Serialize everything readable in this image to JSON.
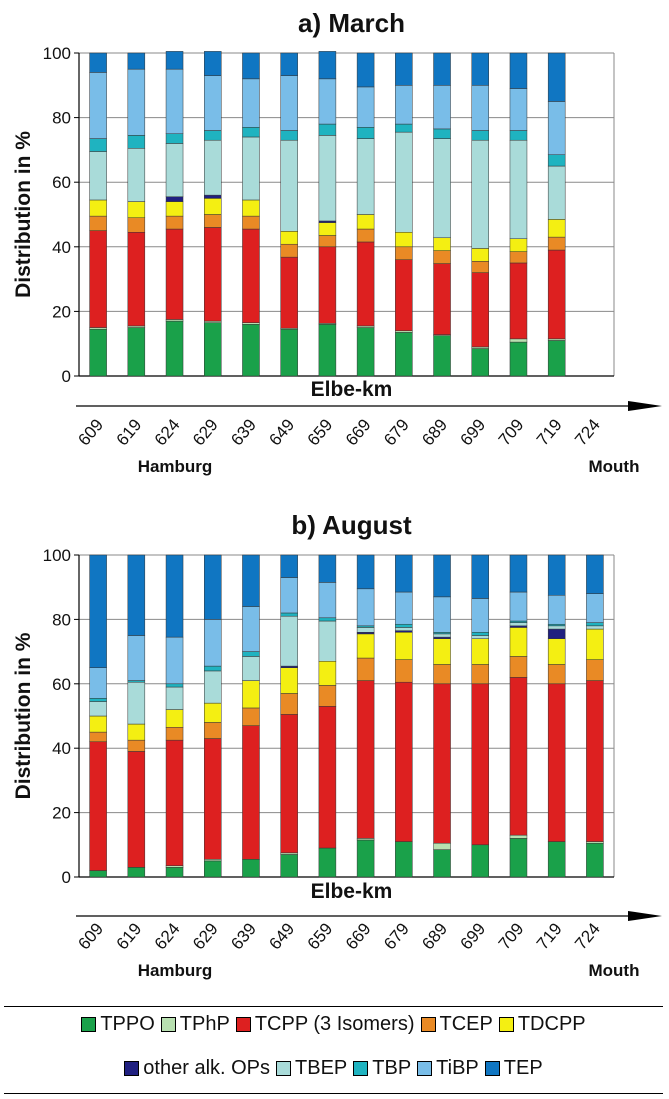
{
  "colors": {
    "TPPO": "#1aa14a",
    "TPhP": "#b8e0b0",
    "TCPP": "#dd2020",
    "TCEP": "#e98a25",
    "TDCPP": "#f4ef12",
    "other": "#202080",
    "TBEP": "#a9dbd9",
    "TBP": "#1fb3c0",
    "TiBP": "#79bde8",
    "TEP": "#1076c2"
  },
  "legend": [
    {
      "key": "TPPO",
      "label": "TPPO"
    },
    {
      "key": "TPhP",
      "label": "TPhP"
    },
    {
      "key": "TCPP",
      "label": "TCPP (3 Isomers)"
    },
    {
      "key": "TCEP",
      "label": "TCEP"
    },
    {
      "key": "TDCPP",
      "label": "TDCPP"
    },
    {
      "key": "other",
      "label": "other alk. OPs"
    },
    {
      "key": "TBEP",
      "label": "TBEP"
    },
    {
      "key": "TBP",
      "label": "TBP"
    },
    {
      "key": "TiBP",
      "label": "TiBP"
    },
    {
      "key": "TEP",
      "label": "TEP"
    }
  ],
  "chart_data": [
    {
      "type": "bar",
      "stacked": true,
      "title": "a) March",
      "ylabel": "Distribution in %",
      "xlabel": "Elbe-km",
      "ylim": [
        0,
        100
      ],
      "yticks": [
        0,
        20,
        40,
        60,
        80,
        100
      ],
      "grid": true,
      "categories": [
        "609",
        "619",
        "624",
        "629",
        "639",
        "649",
        "659",
        "669",
        "679",
        "689",
        "699",
        "709",
        "719",
        "724"
      ],
      "annotations": {
        "left": "Hamburg",
        "right": "Mouth"
      },
      "series": [
        {
          "name": "TPPO",
          "values": [
            14.5,
            15,
            17,
            16.5,
            16,
            14.5,
            16,
            15,
            13.5,
            12.5,
            8.5,
            10.5,
            11,
            0
          ]
        },
        {
          "name": "TPhP",
          "values": [
            0.5,
            0.5,
            0.5,
            0.5,
            0.5,
            0.3,
            0.3,
            0.5,
            0.5,
            0.3,
            0.5,
            1,
            0.5,
            0
          ]
        },
        {
          "name": "TCPP (3 Isomers)",
          "values": [
            30,
            29,
            28,
            29,
            29,
            22,
            23.7,
            26,
            22,
            22,
            23,
            23.5,
            27.5,
            0
          ]
        },
        {
          "name": "TCEP",
          "values": [
            4.5,
            4.5,
            4,
            4,
            4,
            4,
            3.5,
            4,
            4,
            4,
            3.5,
            3.5,
            4,
            0
          ]
        },
        {
          "name": "TDCPP",
          "values": [
            5,
            5,
            4.5,
            5,
            5,
            4,
            4,
            4.5,
            4.5,
            4,
            4,
            4,
            5.5,
            0
          ]
        },
        {
          "name": "other alk. OPs",
          "values": [
            0,
            0,
            1.5,
            1,
            0,
            0,
            0.5,
            0,
            0,
            0,
            0,
            0,
            0,
            0
          ]
        },
        {
          "name": "TBEP",
          "values": [
            15,
            16.5,
            16.5,
            17,
            19.5,
            28.2,
            26.5,
            23.5,
            31,
            30.7,
            33.5,
            30.5,
            16.5,
            0
          ]
        },
        {
          "name": "TBP",
          "values": [
            4,
            4,
            3,
            3,
            3,
            3,
            3.5,
            3.5,
            2.5,
            3,
            3,
            3,
            3.5,
            0
          ]
        },
        {
          "name": "TiBP",
          "values": [
            20.5,
            20.5,
            20,
            17,
            15,
            17,
            14,
            12.5,
            12,
            13.5,
            14,
            13,
            16.5,
            0
          ]
        },
        {
          "name": "TEP",
          "values": [
            6,
            5,
            5.5,
            7.5,
            8,
            7,
            8.5,
            10.5,
            10,
            10,
            10,
            11,
            15,
            0
          ]
        }
      ]
    },
    {
      "type": "bar",
      "stacked": true,
      "title": "b) August",
      "ylabel": "Distribution in %",
      "xlabel": "Elbe-km",
      "ylim": [
        0,
        100
      ],
      "yticks": [
        0,
        20,
        40,
        60,
        80,
        100
      ],
      "grid": true,
      "categories": [
        "609",
        "619",
        "624",
        "629",
        "639",
        "649",
        "659",
        "669",
        "679",
        "689",
        "699",
        "709",
        "719",
        "724"
      ],
      "annotations": {
        "left": "Hamburg",
        "right": "Mouth"
      },
      "series": [
        {
          "name": "TPPO",
          "values": [
            2,
            3,
            3,
            5,
            5.5,
            7,
            9,
            11.5,
            11,
            8.5,
            10,
            12,
            11,
            10.5
          ]
        },
        {
          "name": "TPhP",
          "values": [
            0,
            0,
            0.5,
            0.5,
            0,
            0.5,
            0,
            0.5,
            0,
            2,
            0,
            1,
            0,
            0.5
          ]
        },
        {
          "name": "TCPP (3 Isomers)",
          "values": [
            40,
            36,
            39,
            37.5,
            41.5,
            43,
            44,
            49,
            49.5,
            49.5,
            50,
            49,
            49,
            50
          ]
        },
        {
          "name": "TCEP",
          "values": [
            3,
            3.5,
            4,
            5,
            5.5,
            6.5,
            6.5,
            7,
            7,
            6,
            6,
            6.5,
            6,
            6.5
          ]
        },
        {
          "name": "TDCPP",
          "values": [
            5,
            5,
            5.5,
            6,
            8.5,
            8,
            7.5,
            7.5,
            8.5,
            8,
            8,
            9,
            8,
            9.5
          ]
        },
        {
          "name": "other alk. OPs",
          "values": [
            0,
            0,
            0,
            0,
            0,
            0.5,
            0,
            0.5,
            0.5,
            0.5,
            0,
            0.5,
            3,
            0
          ]
        },
        {
          "name": "TBEP",
          "values": [
            4.5,
            13,
            7,
            10,
            7.5,
            15.5,
            12.5,
            1.5,
            1,
            1,
            1,
            1,
            1,
            1
          ]
        },
        {
          "name": "TBP",
          "values": [
            1,
            0.5,
            1,
            1.5,
            1.5,
            1,
            1,
            0.5,
            1,
            0.5,
            1,
            0.5,
            0.5,
            1
          ]
        },
        {
          "name": "TiBP",
          "values": [
            9.5,
            14,
            14.5,
            14.5,
            14,
            11,
            11,
            11.5,
            10,
            11,
            10.5,
            9,
            9,
            9
          ]
        },
        {
          "name": "TEP",
          "values": [
            35,
            25,
            25.5,
            20,
            16,
            7,
            8.5,
            10.5,
            11.5,
            13,
            13.5,
            11.5,
            12.5,
            12
          ]
        }
      ]
    }
  ]
}
